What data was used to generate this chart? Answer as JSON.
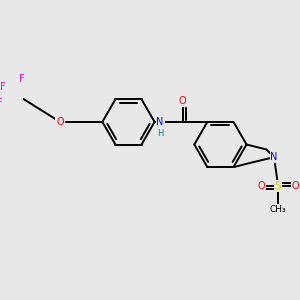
{
  "background_color": "#e8e8e8",
  "bond_color": "#000000",
  "atom_colors": {
    "F": "#ff00cc",
    "O": "#ff0000",
    "N": "#0000ff",
    "S": "#cccc00",
    "C": "#000000",
    "H": "#008080"
  },
  "figsize": [
    3.0,
    3.0
  ],
  "dpi": 100,
  "lw": 1.4,
  "fs": 7.0
}
